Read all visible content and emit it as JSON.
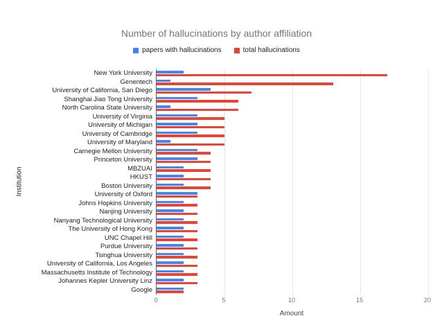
{
  "title": "Number of hallucinations by author affiliation",
  "legend": [
    {
      "label": "papers with hallucinations",
      "color": "#4285f4"
    },
    {
      "label": "total hallucinations",
      "color": "#ea4335"
    }
  ],
  "chart_data": {
    "type": "bar",
    "orientation": "horizontal",
    "title": "Number of hallucinations by author affiliation",
    "xlabel": "Amount",
    "ylabel": "Institution",
    "xlim": [
      0,
      20
    ],
    "xticks": [
      0,
      5,
      10,
      15,
      20
    ],
    "grid": "vertical",
    "legend_position": "top",
    "categories": [
      "New York University",
      "Genentech",
      "University of California, San Diego",
      "Shanghai Jiao Tong University",
      "North Carolina State University",
      "University of Virginia",
      "University of Michigan",
      "University of Cambridge",
      "University of Maryland",
      "Carnegie Mellon University",
      "Princeton University",
      "MBZUAI",
      "HKUST",
      "Boston University",
      "University of Oxford",
      "Johns Hopkins University",
      "Nanjing University",
      "Nanyang Technological University",
      "The University of Hong Kong",
      "UNC Chapel Hill",
      "Purdue University",
      "Tsinghua University",
      "University of California, Los Angeles",
      "Massachusetts Institute of Technology",
      "Johannes Kepler University Linz",
      "Google"
    ],
    "series": [
      {
        "name": "papers with hallucinations",
        "color": "#4285f4",
        "values": [
          2,
          1,
          4,
          3,
          1,
          3,
          3,
          3,
          1,
          3,
          3,
          2,
          2,
          2,
          3,
          2,
          2,
          2,
          2,
          2,
          2,
          2,
          2,
          2,
          2,
          2
        ]
      },
      {
        "name": "total hallucinations",
        "color": "#ea4335",
        "values": [
          17,
          13,
          7,
          6,
          6,
          5,
          5,
          5,
          5,
          4,
          4,
          4,
          4,
          4,
          3,
          3,
          3,
          3,
          3,
          3,
          3,
          3,
          3,
          3,
          3,
          2
        ]
      }
    ]
  }
}
